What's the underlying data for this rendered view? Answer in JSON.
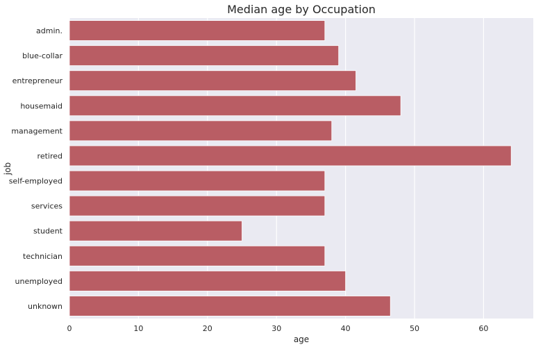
{
  "chart_data": {
    "type": "bar",
    "orientation": "horizontal",
    "title": "Median age by Occupation",
    "xlabel": "age",
    "ylabel": "job",
    "categories": [
      "admin.",
      "blue-collar",
      "entrepreneur",
      "housemaid",
      "management",
      "retired",
      "self-employed",
      "services",
      "student",
      "technician",
      "unemployed",
      "unknown"
    ],
    "values": [
      37,
      39,
      41.5,
      48,
      38,
      64,
      37,
      37,
      25,
      37,
      40,
      46.5
    ],
    "xlim": [
      0,
      67.2
    ],
    "xticks": [
      0,
      10,
      20,
      30,
      40,
      50,
      60
    ],
    "grid": true,
    "legend": "none",
    "colors": {
      "bar": "#b95d64",
      "bar_edge": "#ffffff",
      "plot_background": "#eaeaf2",
      "grid": "#ffffff",
      "text": "#262626"
    }
  }
}
